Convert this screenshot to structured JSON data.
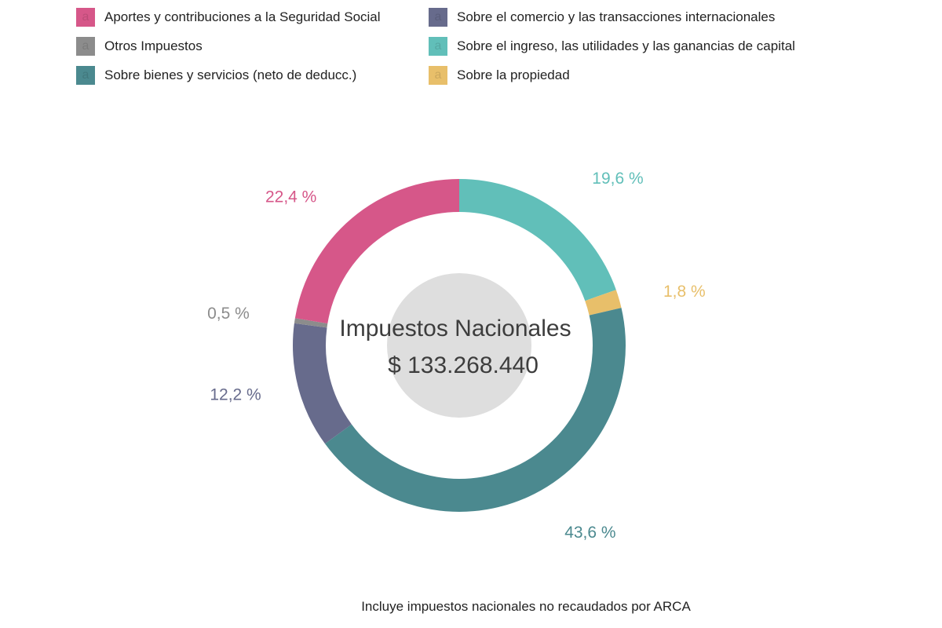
{
  "legend": {
    "items": [
      {
        "label": "Aportes y contribuciones a la Seguridad Social",
        "color": "#d65789",
        "glyph": "a"
      },
      {
        "label": "Otros Impuestos",
        "color": "#8c8c8c",
        "glyph": "a"
      },
      {
        "label": "Sobre bienes y servicios (neto de deducc.)",
        "color": "#4b898f",
        "glyph": "a"
      },
      {
        "label": "Sobre el comercio y las transacciones internacionales",
        "color": "#676b8c",
        "glyph": "a"
      },
      {
        "label": "Sobre el ingreso, las utilidades y las ganancias de capital",
        "color": "#61bfb9",
        "glyph": "a"
      },
      {
        "label": "Sobre la propiedad",
        "color": "#e8bf6a",
        "glyph": "a"
      }
    ]
  },
  "center": {
    "title": "Impuestos Nacionales",
    "total": "$ 133.268.440",
    "circle_color": "#dedede"
  },
  "footnote": "Incluye impuestos nacionales no recaudados por ARCA",
  "chart_data": {
    "type": "pie",
    "subtype": "donut",
    "title": "Impuestos Nacionales",
    "center_value": "$ 133.268.440",
    "start_angle": "12 o'clock, clockwise",
    "legend_position": "top",
    "categories": [
      "Sobre el ingreso, las utilidades y las ganancias de capital",
      "Sobre la propiedad",
      "Sobre bienes y servicios (neto de deducc.)",
      "Sobre el comercio y las transacciones internacionales",
      "Otros Impuestos",
      "Aportes y contribuciones a la Seguridad Social"
    ],
    "values": [
      19.6,
      1.8,
      43.6,
      12.2,
      0.5,
      22.4
    ],
    "labels": [
      "19,6 %",
      "1,8 %",
      "43,6 %",
      "12,2 %",
      "0,5 %",
      "22,4 %"
    ],
    "colors": [
      "#61bfb9",
      "#e8bf6a",
      "#4b898f",
      "#676b8c",
      "#8c8c8c",
      "#d65789"
    ],
    "label_colors": [
      "#61bfb9",
      "#e8bf6a",
      "#4b898f",
      "#676b8c",
      "#8c8c8c",
      "#d65789"
    ],
    "annotation": "Incluye impuestos nacionales no recaudados por ARCA"
  }
}
